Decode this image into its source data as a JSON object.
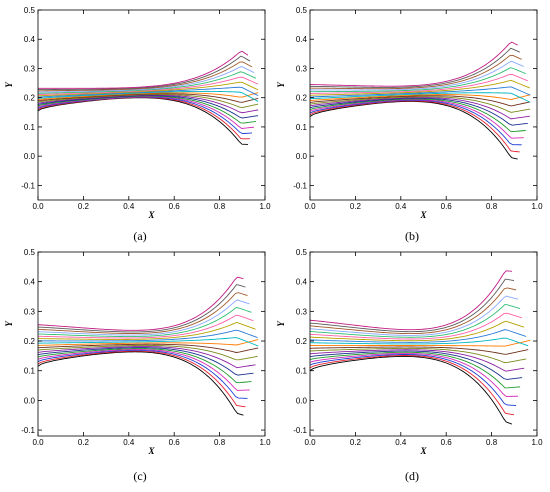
{
  "chart_data": [
    {
      "type": "line",
      "caption": "(a)",
      "xlabel": "X",
      "ylabel": "Y",
      "xlim": [
        0.0,
        1.0
      ],
      "ylim": [
        -0.15,
        0.5
      ],
      "xticks": [
        "0.0",
        "0.2",
        "0.4",
        "0.6",
        "0.8",
        "1.0"
      ],
      "yticks": [
        "-0.1",
        "0.0",
        "0.1",
        "0.2",
        "0.3",
        "0.4",
        "0.5"
      ],
      "grid": false,
      "families": {
        "left_y_range": [
          0.155,
          0.232
        ],
        "converge": {
          "x": 0.895,
          "y": 0.232
        },
        "tip_y_range": [
          0.02,
          0.375
        ],
        "n_lines": 19
      }
    },
    {
      "type": "line",
      "caption": "(b)",
      "xlabel": "X",
      "ylabel": "Y",
      "xlim": [
        0.0,
        1.0
      ],
      "ylim": [
        -0.15,
        0.5
      ],
      "xticks": [
        "0.0",
        "0.2",
        "0.4",
        "0.6",
        "0.8",
        "1.0"
      ],
      "yticks": [
        "-0.1",
        "0.0",
        "0.1",
        "0.2",
        "0.3",
        "0.4",
        "0.5"
      ],
      "grid": false,
      "families": {
        "left_y_range": [
          0.135,
          0.245
        ],
        "converge": {
          "x": 0.885,
          "y": 0.225
        },
        "tip_y_range": [
          -0.03,
          0.41
        ],
        "n_lines": 19
      }
    },
    {
      "type": "line",
      "caption": "(c)",
      "xlabel": "X",
      "ylabel": "Y",
      "xlim": [
        0.0,
        1.0
      ],
      "ylim": [
        -0.12,
        0.5
      ],
      "xticks": [
        "0.0",
        "0.2",
        "0.4",
        "0.6",
        "0.8",
        "1.0"
      ],
      "yticks": [
        "-0.1",
        "0.0",
        "0.1",
        "0.2",
        "0.3",
        "0.4",
        "0.5"
      ],
      "grid": false,
      "families": {
        "left_y_range": [
          0.115,
          0.255
        ],
        "converge": {
          "x": 0.875,
          "y": 0.2
        },
        "tip_y_range": [
          -0.07,
          0.44
        ],
        "n_lines": 19
      }
    },
    {
      "type": "line",
      "caption": "(d)",
      "xlabel": "X",
      "ylabel": "Y",
      "xlim": [
        0.0,
        1.0
      ],
      "ylim": [
        -0.12,
        0.5
      ],
      "xticks": [
        "0.0",
        "0.2",
        "0.4",
        "0.6",
        "0.8",
        "1.0"
      ],
      "yticks": [
        "-0.1",
        "0.0",
        "0.1",
        "0.2",
        "0.3",
        "0.4",
        "0.5"
      ],
      "grid": false,
      "families": {
        "left_y_range": [
          0.1,
          0.27
        ],
        "converge": {
          "x": 0.86,
          "y": 0.185
        },
        "tip_y_range": [
          -0.1,
          0.465
        ],
        "n_lines": 19
      }
    }
  ],
  "colors": [
    "#000000",
    "#e8212e",
    "#1f3fd6",
    "#d429b8",
    "#1e9b2d",
    "#1b2f8f",
    "#8b1fa3",
    "#7a8a1c",
    "#6d2f1c",
    "#ff7a00",
    "#00b7c2",
    "#2a7bd8",
    "#b8a100",
    "#ff5fa8",
    "#2fbf71",
    "#8aa9ff",
    "#a05a2c",
    "#5b5b5b",
    "#c11c84"
  ]
}
